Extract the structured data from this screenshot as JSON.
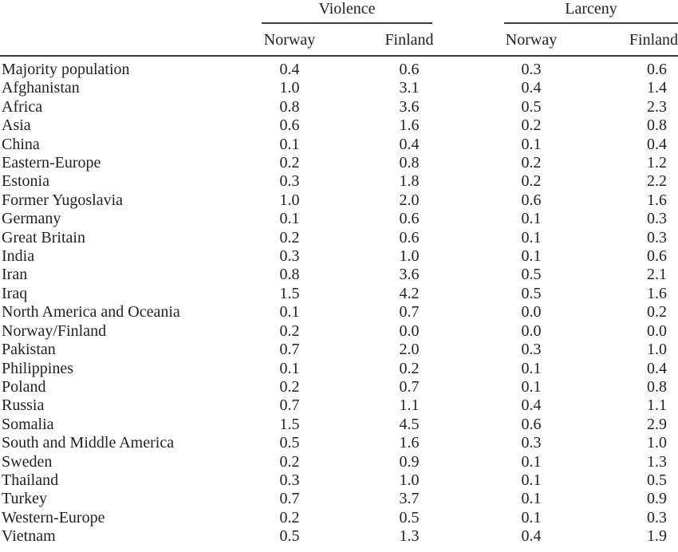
{
  "table": {
    "group_headers": [
      {
        "label": "Violence"
      },
      {
        "label": "Larceny"
      }
    ],
    "column_headers": [
      "Norway",
      "Finland",
      "Norway",
      "Finland"
    ],
    "rows": [
      {
        "label": "Majority population",
        "values": [
          "0.4",
          "0.6",
          "0.3",
          "0.6"
        ]
      },
      {
        "label": "Afghanistan",
        "values": [
          "1.0",
          "3.1",
          "0.4",
          "1.4"
        ]
      },
      {
        "label": "Africa",
        "values": [
          "0.8",
          "3.6",
          "0.5",
          "2.3"
        ]
      },
      {
        "label": "Asia",
        "values": [
          "0.6",
          "1.6",
          "0.2",
          "0.8"
        ]
      },
      {
        "label": "China",
        "values": [
          "0.1",
          "0.4",
          "0.1",
          "0.4"
        ]
      },
      {
        "label": "Eastern-Europe",
        "values": [
          "0.2",
          "0.8",
          "0.2",
          "1.2"
        ]
      },
      {
        "label": "Estonia",
        "values": [
          "0.3",
          "1.8",
          "0.2",
          "2.2"
        ]
      },
      {
        "label": "Former Yugoslavia",
        "values": [
          "1.0",
          "2.0",
          "0.6",
          "1.6"
        ]
      },
      {
        "label": "Germany",
        "values": [
          "0.1",
          "0.6",
          "0.1",
          "0.3"
        ]
      },
      {
        "label": "Great Britain",
        "values": [
          "0.2",
          "0.6",
          "0.1",
          "0.3"
        ]
      },
      {
        "label": "India",
        "values": [
          "0.3",
          "1.0",
          "0.1",
          "0.6"
        ]
      },
      {
        "label": "Iran",
        "values": [
          "0.8",
          "3.6",
          "0.5",
          "2.1"
        ]
      },
      {
        "label": "Iraq",
        "values": [
          "1.5",
          "4.2",
          "0.5",
          "1.6"
        ]
      },
      {
        "label": "North America and Oceania",
        "values": [
          "0.1",
          "0.7",
          "0.0",
          "0.2"
        ]
      },
      {
        "label": "Norway/Finland",
        "values": [
          "0.2",
          "0.0",
          "0.0",
          "0.0"
        ]
      },
      {
        "label": "Pakistan",
        "values": [
          "0.7",
          "2.0",
          "0.3",
          "1.0"
        ]
      },
      {
        "label": "Philippines",
        "values": [
          "0.1",
          "0.2",
          "0.1",
          "0.4"
        ]
      },
      {
        "label": "Poland",
        "values": [
          "0.2",
          "0.7",
          "0.1",
          "0.8"
        ]
      },
      {
        "label": "Russia",
        "values": [
          "0.7",
          "1.1",
          "0.4",
          "1.1"
        ]
      },
      {
        "label": "Somalia",
        "values": [
          "1.5",
          "4.5",
          "0.6",
          "2.9"
        ]
      },
      {
        "label": "South and Middle America",
        "values": [
          "0.5",
          "1.6",
          "0.3",
          "1.0"
        ]
      },
      {
        "label": "Sweden",
        "values": [
          "0.2",
          "0.9",
          "0.1",
          "1.3"
        ]
      },
      {
        "label": "Thailand",
        "values": [
          "0.3",
          "1.0",
          "0.1",
          "0.5"
        ]
      },
      {
        "label": "Turkey",
        "values": [
          "0.7",
          "3.7",
          "0.1",
          "0.9"
        ]
      },
      {
        "label": "Western-Europe",
        "values": [
          "0.2",
          "0.5",
          "0.1",
          "0.3"
        ]
      },
      {
        "label": "Vietnam",
        "values": [
          "0.5",
          "1.3",
          "0.4",
          "1.9"
        ]
      }
    ]
  },
  "colors": {
    "text": "#222222",
    "rule": "#3d3d3d",
    "background": "#ffffff"
  }
}
